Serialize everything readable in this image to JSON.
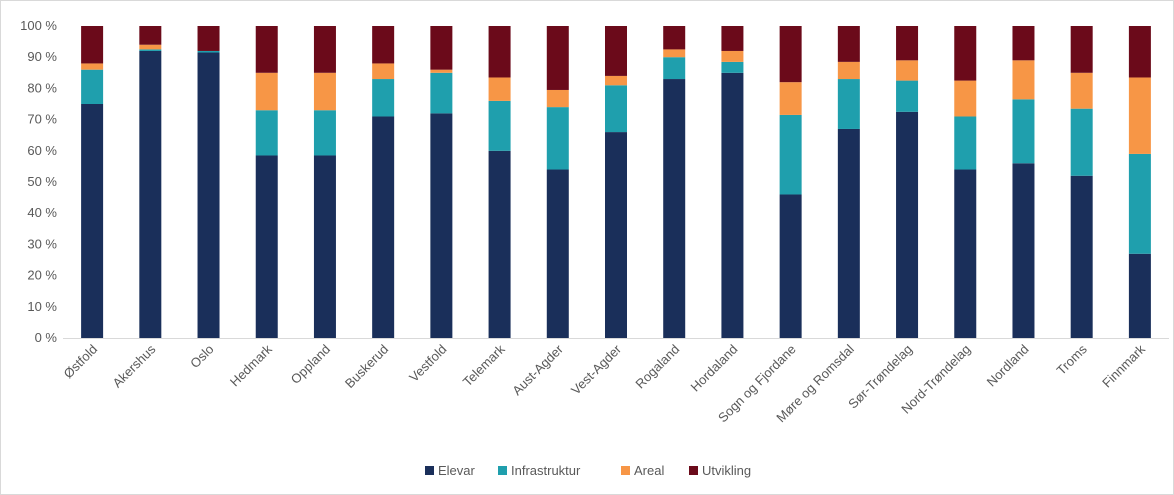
{
  "chart_data": {
    "type": "bar",
    "stacked": true,
    "percent": true,
    "title": "",
    "xlabel": "",
    "ylabel": "",
    "ylim": [
      0,
      100
    ],
    "yticks": [
      "0 %",
      "10 %",
      "20 %",
      "30 %",
      "40 %",
      "50 %",
      "60 %",
      "70 %",
      "80 %",
      "90 %",
      "100 %"
    ],
    "grid": false,
    "legend_position": "bottom",
    "categories": [
      "Østfold",
      "Akershus",
      "Oslo",
      "Hedmark",
      "Oppland",
      "Buskerud",
      "Vestfold",
      "Telemark",
      "Aust-Agder",
      "Vest-Agder",
      "Rogaland",
      "Hordaland",
      "Sogn og Fjordane",
      "Møre og Romsdal",
      "Sør-Trøndelag",
      "Nord-Trøndelag",
      "Nordland",
      "Troms",
      "Finnmark"
    ],
    "series": [
      {
        "name": "Elevar",
        "color": "#1a2f5a",
        "values": [
          75,
          92,
          91.5,
          58.5,
          58.5,
          71,
          72,
          60,
          54,
          66,
          83,
          85,
          46,
          67,
          72.5,
          54,
          56,
          52,
          27
        ]
      },
      {
        "name": "Infrastruktur",
        "color": "#1f9fad",
        "values": [
          11,
          0.5,
          0.5,
          14.5,
          14.5,
          12,
          13,
          16,
          20,
          15,
          7,
          3.5,
          25.5,
          16,
          10,
          17,
          20.5,
          21.5,
          32
        ]
      },
      {
        "name": "Areal",
        "color": "#f79646",
        "values": [
          2,
          1.5,
          0,
          12,
          12,
          5,
          1,
          7.5,
          5.5,
          3,
          2.5,
          3.5,
          10.5,
          5.5,
          6.5,
          11.5,
          12.5,
          11.5,
          24.5
        ]
      },
      {
        "name": "Utvikling",
        "color": "#6b0a1a",
        "values": [
          12,
          6,
          8,
          15,
          15,
          12,
          14,
          16.5,
          20.5,
          16,
          7.5,
          8,
          18,
          11.5,
          11,
          17.5,
          11,
          15,
          16.5
        ]
      }
    ]
  }
}
